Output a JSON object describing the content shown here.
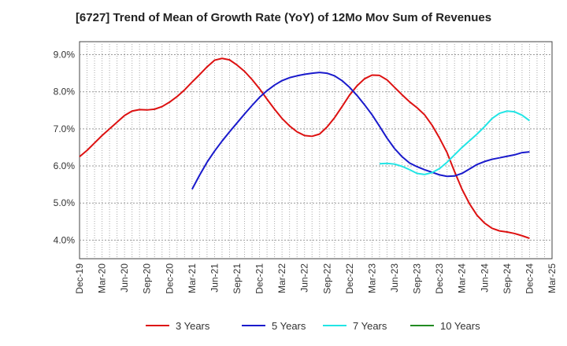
{
  "chart_data": {
    "type": "line",
    "title": "[6727]  Trend of Mean of Growth Rate (YoY) of 12Mo Mov Sum of Revenues",
    "xlabel": "",
    "ylabel": "",
    "ylim": [
      3.5,
      9.35
    ],
    "y_ticks": [
      4.0,
      5.0,
      6.0,
      7.0,
      8.0,
      9.0
    ],
    "y_tick_labels": [
      "4.0%",
      "5.0%",
      "6.0%",
      "7.0%",
      "8.0%",
      "9.0%"
    ],
    "x_tick_labels": [
      "Dec-19",
      "Mar-20",
      "Jun-20",
      "Sep-20",
      "Dec-20",
      "Mar-21",
      "Jun-21",
      "Sep-21",
      "Dec-21",
      "Mar-22",
      "Jun-22",
      "Sep-22",
      "Dec-22",
      "Mar-23",
      "Jun-23",
      "Sep-23",
      "Dec-23",
      "Mar-24",
      "Jun-24",
      "Sep-24",
      "Dec-24",
      "Mar-25"
    ],
    "x_range_months": [
      0,
      63
    ],
    "grid": true,
    "legend_position": "bottom",
    "series": [
      {
        "name": "3 Years",
        "color": "#dd1111",
        "x": [
          0,
          1,
          2,
          3,
          4,
          5,
          6,
          7,
          8,
          9,
          10,
          11,
          12,
          13,
          14,
          15,
          16,
          17,
          18,
          19,
          20,
          21,
          22,
          23,
          24,
          25,
          26,
          27,
          28,
          29,
          30,
          31,
          32,
          33,
          34,
          35,
          36,
          37,
          38,
          39,
          40,
          41,
          42,
          43,
          44,
          45,
          46,
          47,
          48,
          49,
          50,
          51,
          52,
          53,
          54,
          55,
          56,
          57,
          58,
          59,
          60
        ],
        "values": [
          6.25,
          6.42,
          6.62,
          6.82,
          7.0,
          7.18,
          7.36,
          7.48,
          7.52,
          7.51,
          7.53,
          7.6,
          7.72,
          7.87,
          8.05,
          8.26,
          8.46,
          8.67,
          8.85,
          8.9,
          8.86,
          8.72,
          8.55,
          8.33,
          8.08,
          7.8,
          7.53,
          7.28,
          7.08,
          6.92,
          6.82,
          6.8,
          6.86,
          7.05,
          7.3,
          7.6,
          7.91,
          8.16,
          8.35,
          8.45,
          8.44,
          8.32,
          8.12,
          7.92,
          7.73,
          7.57,
          7.38,
          7.1,
          6.75,
          6.36,
          5.85,
          5.37,
          4.98,
          4.67,
          4.46,
          4.32,
          4.25,
          4.22,
          4.18,
          4.12,
          4.05
        ]
      },
      {
        "name": "5 Years",
        "color": "#1a1acc",
        "x": [
          15,
          16,
          17,
          18,
          19,
          20,
          21,
          22,
          23,
          24,
          25,
          26,
          27,
          28,
          29,
          30,
          31,
          32,
          33,
          34,
          35,
          36,
          37,
          38,
          39,
          40,
          41,
          42,
          43,
          44,
          45,
          46,
          47,
          48,
          49,
          50,
          51,
          52,
          53,
          54,
          55,
          56,
          57,
          58,
          59,
          60
        ],
        "values": [
          5.37,
          5.75,
          6.1,
          6.4,
          6.67,
          6.92,
          7.16,
          7.4,
          7.63,
          7.85,
          8.03,
          8.18,
          8.3,
          8.38,
          8.43,
          8.47,
          8.5,
          8.52,
          8.5,
          8.43,
          8.3,
          8.12,
          7.9,
          7.65,
          7.38,
          7.07,
          6.75,
          6.47,
          6.25,
          6.08,
          5.98,
          5.9,
          5.83,
          5.76,
          5.72,
          5.73,
          5.8,
          5.92,
          6.04,
          6.12,
          6.18,
          6.22,
          6.26,
          6.3,
          6.36,
          6.38
        ]
      },
      {
        "name": "7 Years",
        "color": "#22e5e5",
        "x": [
          40,
          41,
          42,
          43,
          44,
          45,
          46,
          47,
          48,
          49,
          50,
          51,
          52,
          53,
          54,
          55,
          56,
          57,
          58,
          59,
          60
        ],
        "values": [
          6.06,
          6.07,
          6.05,
          5.99,
          5.9,
          5.8,
          5.77,
          5.82,
          5.93,
          6.1,
          6.3,
          6.5,
          6.68,
          6.86,
          7.06,
          7.28,
          7.42,
          7.48,
          7.46,
          7.37,
          7.22
        ]
      },
      {
        "name": "10 Years",
        "color": "#228B22",
        "x": [],
        "values": []
      }
    ]
  }
}
